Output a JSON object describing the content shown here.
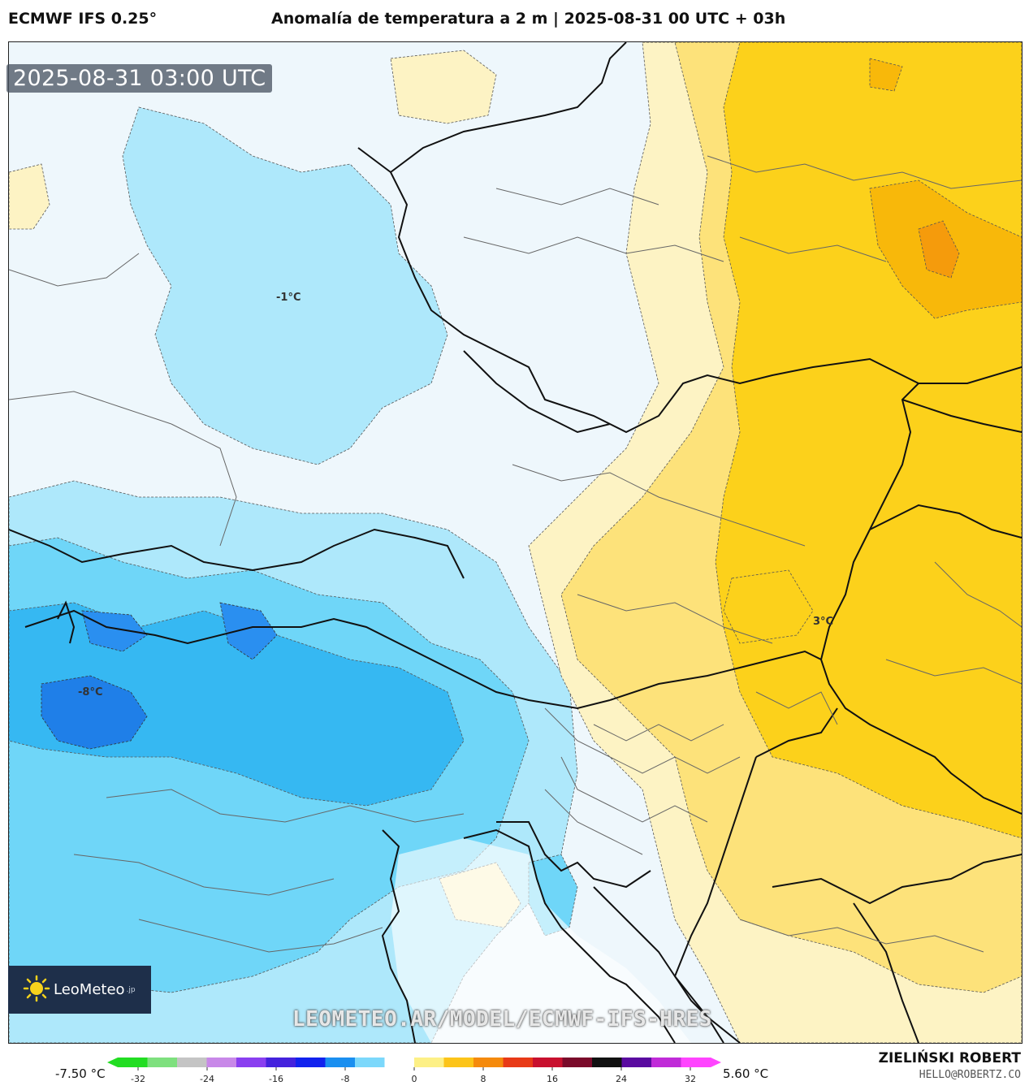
{
  "header": {
    "model": "ECMWF IFS 0.25°",
    "title": "Anomalía de temperatura a 2 m | 2025-08-31 00 UTC + 03h"
  },
  "map": {
    "timestamp": "2025-08-31 03:00 UTC",
    "watermark": "LEOMETEO.AR/MODEL/ECMWF-IFS-HRES",
    "logo": {
      "name": "LeoMeteo",
      "tld": ".jp"
    },
    "contour_labels": [
      "-1°C",
      "-8°C",
      "3°C"
    ],
    "colors": {
      "cold_light": "#eaf6fc",
      "cold_1": "#aee8fb",
      "cold_2": "#6fd6f8",
      "cold_3": "#36b8f2",
      "cold_4": "#1f7fe8",
      "warm_light": "#fdf3c4",
      "warm_1": "#fde27a",
      "warm_2": "#fcd11b",
      "warm_3": "#f8b80a",
      "warm_4": "#f59b0c",
      "border": "#111111",
      "admin": "#666666"
    }
  },
  "colorbar": {
    "min_label": "-7.50 °C",
    "max_label": "5.60 °C",
    "ticks": [
      "-32",
      "-24",
      "-16",
      "-8",
      "0",
      "8",
      "16",
      "24",
      "32"
    ],
    "stops": [
      "#22dd22",
      "#7ee07e",
      "#c4c4c4",
      "#c888e8",
      "#8a3ff0",
      "#4422dd",
      "#1122ee",
      "#1a8ff0",
      "#7cd8fb",
      "#ffffff",
      "#fdf086",
      "#fcc419",
      "#f58a0c",
      "#e83a17",
      "#c8102e",
      "#7a0a2a",
      "#111111",
      "#5a0aa0",
      "#c02bd8",
      "#ff44ff"
    ]
  },
  "credits": {
    "name": "ZIELIŃSKI ROBERT",
    "email": "HELLO@ROBERTZ.CO"
  }
}
